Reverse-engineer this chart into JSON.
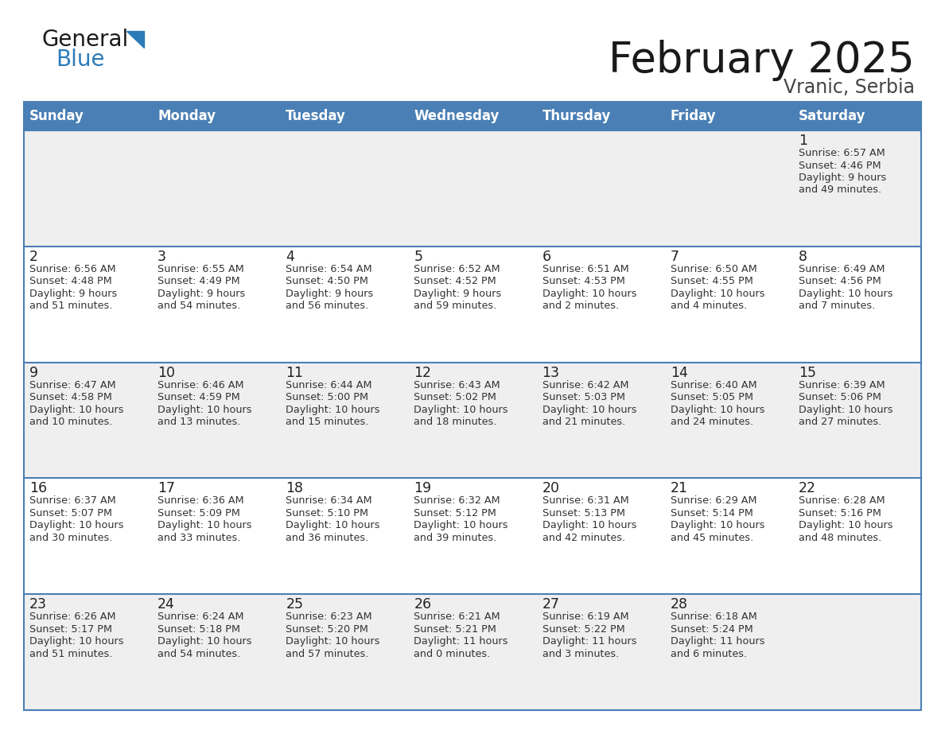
{
  "title": "February 2025",
  "subtitle": "Vranic, Serbia",
  "days_of_week": [
    "Sunday",
    "Monday",
    "Tuesday",
    "Wednesday",
    "Thursday",
    "Friday",
    "Saturday"
  ],
  "header_bg": "#4A7FB5",
  "header_text": "#FFFFFF",
  "row_bg_odd": "#EFEFEF",
  "row_bg_even": "#FFFFFF",
  "separator_color": "#4A7FB5",
  "day_number_color": "#222222",
  "cell_text_color": "#333333",
  "title_color": "#1a1a1a",
  "subtitle_color": "#444444",
  "logo_general_color": "#1a1a1a",
  "logo_blue_color": "#2B7BB9",
  "logo_triangle_color": "#2B7BB9",
  "calendar_data": [
    [
      null,
      null,
      null,
      null,
      null,
      null,
      {
        "day": "1",
        "sunrise": "Sunrise: 6:57 AM",
        "sunset": "Sunset: 4:46 PM",
        "daylight1": "Daylight: 9 hours",
        "daylight2": "and 49 minutes."
      }
    ],
    [
      {
        "day": "2",
        "sunrise": "Sunrise: 6:56 AM",
        "sunset": "Sunset: 4:48 PM",
        "daylight1": "Daylight: 9 hours",
        "daylight2": "and 51 minutes."
      },
      {
        "day": "3",
        "sunrise": "Sunrise: 6:55 AM",
        "sunset": "Sunset: 4:49 PM",
        "daylight1": "Daylight: 9 hours",
        "daylight2": "and 54 minutes."
      },
      {
        "day": "4",
        "sunrise": "Sunrise: 6:54 AM",
        "sunset": "Sunset: 4:50 PM",
        "daylight1": "Daylight: 9 hours",
        "daylight2": "and 56 minutes."
      },
      {
        "day": "5",
        "sunrise": "Sunrise: 6:52 AM",
        "sunset": "Sunset: 4:52 PM",
        "daylight1": "Daylight: 9 hours",
        "daylight2": "and 59 minutes."
      },
      {
        "day": "6",
        "sunrise": "Sunrise: 6:51 AM",
        "sunset": "Sunset: 4:53 PM",
        "daylight1": "Daylight: 10 hours",
        "daylight2": "and 2 minutes."
      },
      {
        "day": "7",
        "sunrise": "Sunrise: 6:50 AM",
        "sunset": "Sunset: 4:55 PM",
        "daylight1": "Daylight: 10 hours",
        "daylight2": "and 4 minutes."
      },
      {
        "day": "8",
        "sunrise": "Sunrise: 6:49 AM",
        "sunset": "Sunset: 4:56 PM",
        "daylight1": "Daylight: 10 hours",
        "daylight2": "and 7 minutes."
      }
    ],
    [
      {
        "day": "9",
        "sunrise": "Sunrise: 6:47 AM",
        "sunset": "Sunset: 4:58 PM",
        "daylight1": "Daylight: 10 hours",
        "daylight2": "and 10 minutes."
      },
      {
        "day": "10",
        "sunrise": "Sunrise: 6:46 AM",
        "sunset": "Sunset: 4:59 PM",
        "daylight1": "Daylight: 10 hours",
        "daylight2": "and 13 minutes."
      },
      {
        "day": "11",
        "sunrise": "Sunrise: 6:44 AM",
        "sunset": "Sunset: 5:00 PM",
        "daylight1": "Daylight: 10 hours",
        "daylight2": "and 15 minutes."
      },
      {
        "day": "12",
        "sunrise": "Sunrise: 6:43 AM",
        "sunset": "Sunset: 5:02 PM",
        "daylight1": "Daylight: 10 hours",
        "daylight2": "and 18 minutes."
      },
      {
        "day": "13",
        "sunrise": "Sunrise: 6:42 AM",
        "sunset": "Sunset: 5:03 PM",
        "daylight1": "Daylight: 10 hours",
        "daylight2": "and 21 minutes."
      },
      {
        "day": "14",
        "sunrise": "Sunrise: 6:40 AM",
        "sunset": "Sunset: 5:05 PM",
        "daylight1": "Daylight: 10 hours",
        "daylight2": "and 24 minutes."
      },
      {
        "day": "15",
        "sunrise": "Sunrise: 6:39 AM",
        "sunset": "Sunset: 5:06 PM",
        "daylight1": "Daylight: 10 hours",
        "daylight2": "and 27 minutes."
      }
    ],
    [
      {
        "day": "16",
        "sunrise": "Sunrise: 6:37 AM",
        "sunset": "Sunset: 5:07 PM",
        "daylight1": "Daylight: 10 hours",
        "daylight2": "and 30 minutes."
      },
      {
        "day": "17",
        "sunrise": "Sunrise: 6:36 AM",
        "sunset": "Sunset: 5:09 PM",
        "daylight1": "Daylight: 10 hours",
        "daylight2": "and 33 minutes."
      },
      {
        "day": "18",
        "sunrise": "Sunrise: 6:34 AM",
        "sunset": "Sunset: 5:10 PM",
        "daylight1": "Daylight: 10 hours",
        "daylight2": "and 36 minutes."
      },
      {
        "day": "19",
        "sunrise": "Sunrise: 6:32 AM",
        "sunset": "Sunset: 5:12 PM",
        "daylight1": "Daylight: 10 hours",
        "daylight2": "and 39 minutes."
      },
      {
        "day": "20",
        "sunrise": "Sunrise: 6:31 AM",
        "sunset": "Sunset: 5:13 PM",
        "daylight1": "Daylight: 10 hours",
        "daylight2": "and 42 minutes."
      },
      {
        "day": "21",
        "sunrise": "Sunrise: 6:29 AM",
        "sunset": "Sunset: 5:14 PM",
        "daylight1": "Daylight: 10 hours",
        "daylight2": "and 45 minutes."
      },
      {
        "day": "22",
        "sunrise": "Sunrise: 6:28 AM",
        "sunset": "Sunset: 5:16 PM",
        "daylight1": "Daylight: 10 hours",
        "daylight2": "and 48 minutes."
      }
    ],
    [
      {
        "day": "23",
        "sunrise": "Sunrise: 6:26 AM",
        "sunset": "Sunset: 5:17 PM",
        "daylight1": "Daylight: 10 hours",
        "daylight2": "and 51 minutes."
      },
      {
        "day": "24",
        "sunrise": "Sunrise: 6:24 AM",
        "sunset": "Sunset: 5:18 PM",
        "daylight1": "Daylight: 10 hours",
        "daylight2": "and 54 minutes."
      },
      {
        "day": "25",
        "sunrise": "Sunrise: 6:23 AM",
        "sunset": "Sunset: 5:20 PM",
        "daylight1": "Daylight: 10 hours",
        "daylight2": "and 57 minutes."
      },
      {
        "day": "26",
        "sunrise": "Sunrise: 6:21 AM",
        "sunset": "Sunset: 5:21 PM",
        "daylight1": "Daylight: 11 hours",
        "daylight2": "and 0 minutes."
      },
      {
        "day": "27",
        "sunrise": "Sunrise: 6:19 AM",
        "sunset": "Sunset: 5:22 PM",
        "daylight1": "Daylight: 11 hours",
        "daylight2": "and 3 minutes."
      },
      {
        "day": "28",
        "sunrise": "Sunrise: 6:18 AM",
        "sunset": "Sunset: 5:24 PM",
        "daylight1": "Daylight: 11 hours",
        "daylight2": "and 6 minutes."
      },
      null
    ]
  ]
}
